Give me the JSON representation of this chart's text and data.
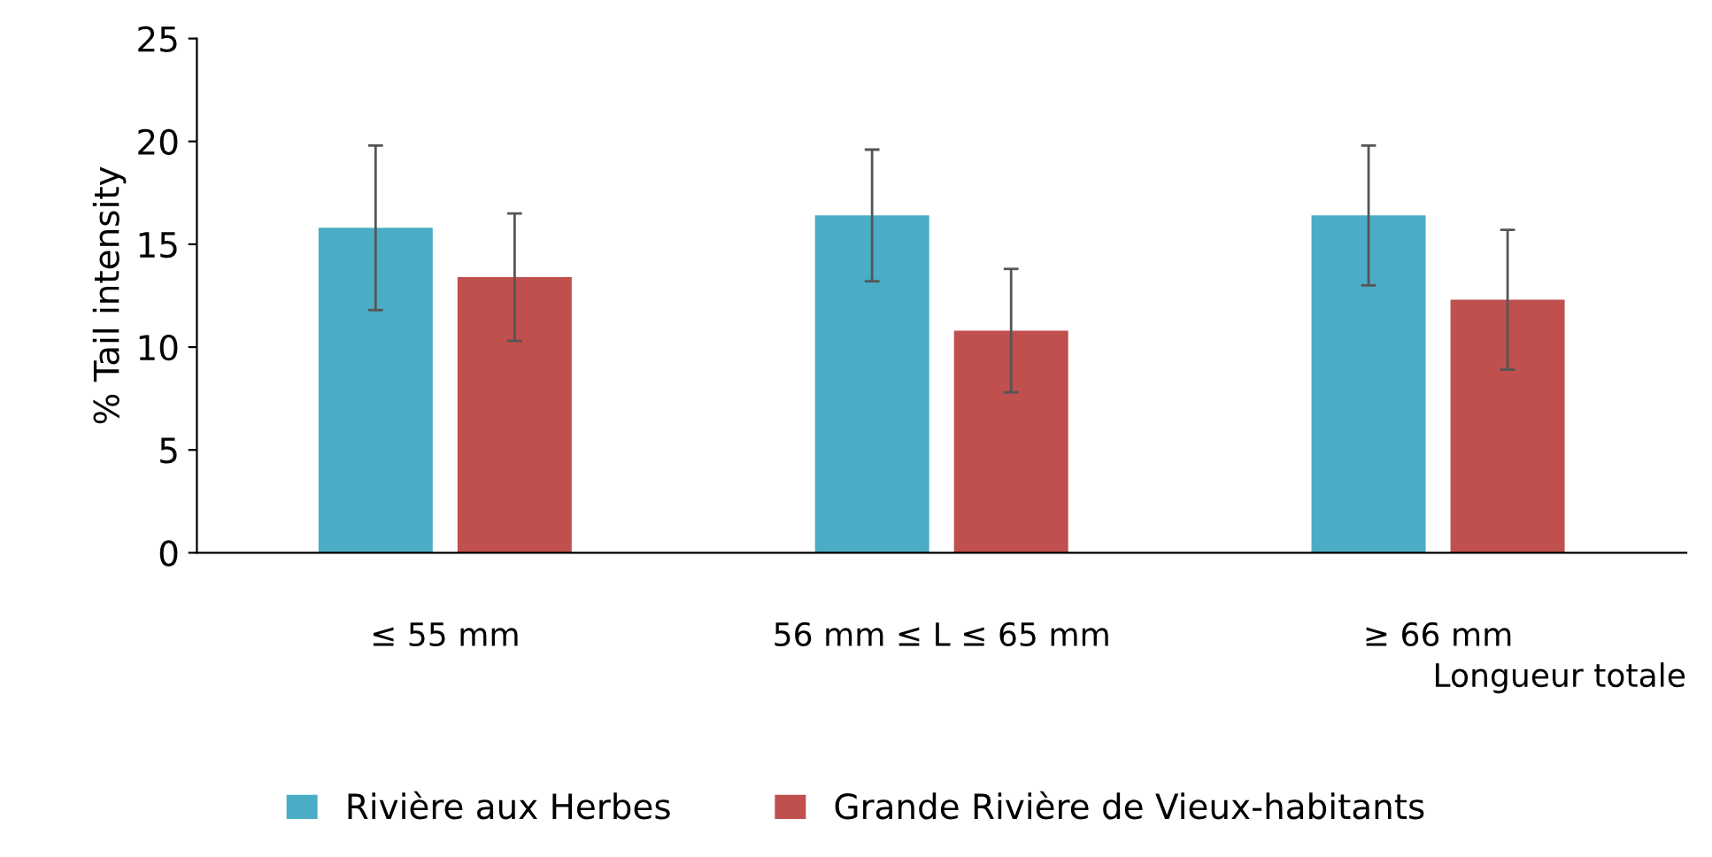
{
  "chart_data": {
    "type": "bar",
    "ylabel": "% Tail intensity",
    "xlabel": "Longueur totale",
    "categories": [
      "≤ 55 mm",
      "56 mm ≤ L ≤ 65 mm",
      "≥ 66 mm"
    ],
    "series": [
      {
        "name": "Rivière aux Herbes",
        "color": "#4bacc6",
        "values": [
          15.8,
          16.4,
          16.4
        ],
        "errors": [
          4.0,
          3.2,
          3.4
        ]
      },
      {
        "name": "Grande Rivière de Vieux-habitants",
        "color": "#c0504d",
        "values": [
          13.4,
          10.8,
          12.3
        ],
        "errors": [
          3.1,
          3.0,
          3.4
        ]
      }
    ],
    "ylim": [
      0,
      25
    ],
    "yticks": [
      0,
      5,
      10,
      15,
      20,
      25
    ],
    "grid": false,
    "legend": "bottom"
  }
}
